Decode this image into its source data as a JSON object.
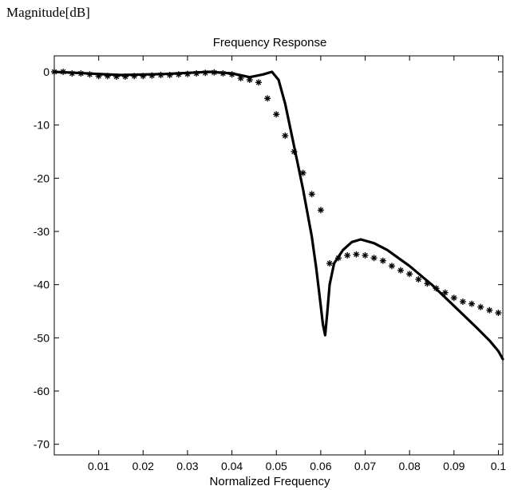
{
  "figure": {
    "outer_ylabel": "Magnitude[dB]"
  },
  "chart_data": {
    "type": "line",
    "title": "Frequency Response",
    "xlabel": "Normalized Frequency",
    "ylabel": "",
    "xlim": [
      0,
      0.101
    ],
    "ylim": [
      -72,
      3
    ],
    "xticks": [
      0.01,
      0.02,
      0.03,
      0.04,
      0.05,
      0.06,
      0.07,
      0.08,
      0.09,
      0.1
    ],
    "xtick_labels": [
      "0.01",
      "0.02",
      "0.03",
      "0.04",
      "0.05",
      "0.06",
      "0.07",
      "0.08",
      "0.09",
      "0.1"
    ],
    "yticks": [
      0,
      -10,
      -20,
      -30,
      -40,
      -50,
      -60,
      -70
    ],
    "ytick_labels": [
      "0",
      "-10",
      "-20",
      "-30",
      "-40",
      "-50",
      "-60",
      "-70"
    ],
    "grid": false,
    "series": [
      {
        "style": "solid-line",
        "color": "#000000",
        "x": [
          0,
          0.005,
          0.01,
          0.015,
          0.02,
          0.025,
          0.03,
          0.035,
          0.04,
          0.044,
          0.047,
          0.049,
          0.0505,
          0.052,
          0.054,
          0.056,
          0.058,
          0.059,
          0.06,
          0.0605,
          0.061,
          0.0615,
          0.062,
          0.063,
          0.065,
          0.067,
          0.069,
          0.072,
          0.075,
          0.08,
          0.085,
          0.09,
          0.095,
          0.098,
          0.1,
          0.101
        ],
        "y": [
          0,
          -0.2,
          -0.4,
          -0.6,
          -0.5,
          -0.4,
          -0.2,
          0,
          -0.3,
          -1,
          -0.5,
          0,
          -1.5,
          -6,
          -14,
          -22,
          -31,
          -37,
          -44,
          -47.5,
          -49.5,
          -45,
          -40,
          -36,
          -33.5,
          -32,
          -31.5,
          -32.2,
          -33.5,
          -36.5,
          -40,
          -44,
          -48,
          -50.5,
          -52.5,
          -54
        ]
      },
      {
        "style": "asterisk-markers",
        "color": "#000000",
        "x": [
          0,
          0.002,
          0.004,
          0.006,
          0.008,
          0.01,
          0.012,
          0.014,
          0.016,
          0.018,
          0.02,
          0.022,
          0.024,
          0.026,
          0.028,
          0.03,
          0.032,
          0.034,
          0.036,
          0.038,
          0.04,
          0.042,
          0.044,
          0.046,
          0.048,
          0.05,
          0.052,
          0.054,
          0.056,
          0.058,
          0.06,
          0.062,
          0.064,
          0.066,
          0.068,
          0.07,
          0.072,
          0.074,
          0.076,
          0.078,
          0.08,
          0.082,
          0.084,
          0.086,
          0.088,
          0.09,
          0.092,
          0.094,
          0.096,
          0.098,
          0.1
        ],
        "y": [
          0,
          0,
          -0.3,
          -0.3,
          -0.5,
          -0.8,
          -0.8,
          -0.9,
          -0.9,
          -0.8,
          -0.8,
          -0.7,
          -0.6,
          -0.6,
          -0.5,
          -0.4,
          -0.3,
          -0.2,
          -0.1,
          -0.3,
          -0.5,
          -1.2,
          -1.5,
          -2,
          -5,
          -8,
          -12,
          -15,
          -19,
          -23,
          -26,
          -36,
          -35,
          -34.5,
          -34.3,
          -34.5,
          -35,
          -35.5,
          -36.5,
          -37.3,
          -38,
          -39,
          -39.8,
          -40.7,
          -41.5,
          -42.5,
          -43.2,
          -43.6,
          -44.2,
          -44.8,
          -45.3
        ]
      }
    ]
  }
}
